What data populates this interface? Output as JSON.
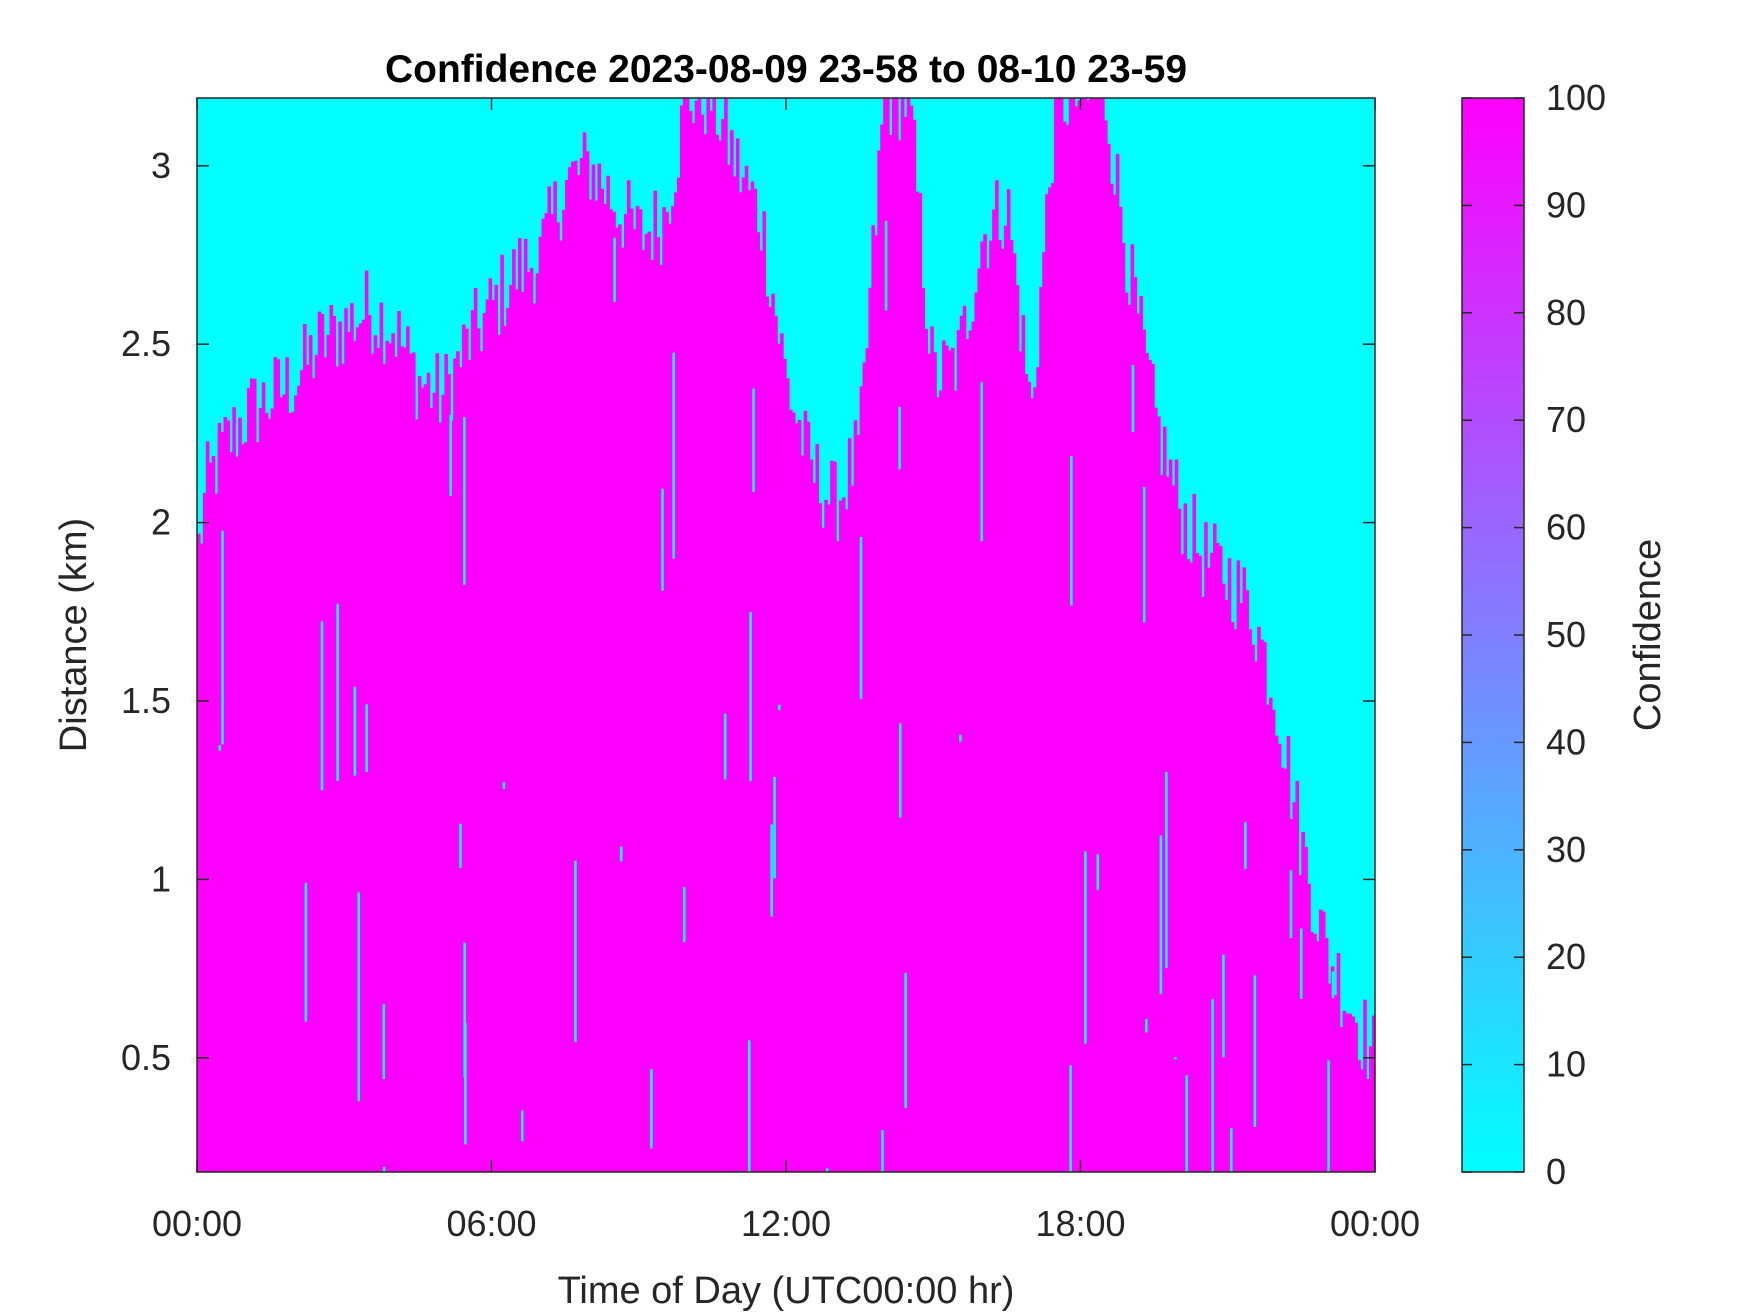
{
  "chart_data": {
    "type": "heatmap",
    "title": "Confidence 2023-08-09 23-58 to 08-10 23-59",
    "xlabel": "Time of Day (UTC00:00 hr)",
    "ylabel": "Distance (km)",
    "colorbar_label": "Confidence",
    "x_unit": "hours",
    "xlim": [
      0,
      24
    ],
    "ylim": [
      0.18,
      3.19
    ],
    "clim": [
      0,
      100
    ],
    "x_ticks": [
      0,
      6,
      12,
      18,
      24
    ],
    "x_tick_labels": [
      "00:00",
      "06:00",
      "12:00",
      "18:00",
      "00:00"
    ],
    "y_ticks": [
      0.5,
      1,
      1.5,
      2,
      2.5,
      3
    ],
    "y_tick_labels": [
      "0.5",
      "1",
      "1.5",
      "2",
      "2.5",
      "3"
    ],
    "colorbar_ticks": [
      0,
      10,
      20,
      30,
      40,
      50,
      60,
      70,
      80,
      90,
      100
    ],
    "colorbar_tick_labels": [
      "0",
      "10",
      "20",
      "30",
      "40",
      "50",
      "60",
      "70",
      "80",
      "90",
      "100"
    ],
    "colormap": {
      "low": "#00FFFF",
      "high": "#FF00FF"
    },
    "low_color": "#00FFFF",
    "high_color": "#FF00FF",
    "high_confidence_top_km": {
      "time_hr": [
        0,
        0.2,
        0.5,
        1,
        1.5,
        2,
        2.5,
        3,
        3.5,
        4,
        4.5,
        5,
        5.5,
        6,
        6.5,
        7,
        7.5,
        8,
        8.5,
        9,
        9.5,
        10,
        10.5,
        11,
        11.5,
        12,
        12.5,
        13,
        13.5,
        14,
        14.5,
        15,
        15.5,
        16,
        16.5,
        17,
        17.5,
        18,
        18.5,
        19,
        19.5,
        20,
        20.5,
        21,
        21.5,
        22,
        22.5,
        23,
        23.5,
        24
      ],
      "value_km": [
        1.9,
        2.1,
        2.2,
        2.3,
        2.35,
        2.4,
        2.5,
        2.55,
        2.6,
        2.55,
        2.4,
        2.35,
        2.5,
        2.6,
        2.7,
        2.75,
        2.95,
        3.0,
        2.9,
        2.8,
        2.85,
        3.19,
        3.19,
        3.0,
        2.85,
        2.4,
        2.15,
        2.05,
        2.2,
        3.19,
        3.19,
        2.4,
        2.45,
        2.8,
        2.9,
        2.3,
        3.19,
        3.19,
        3.19,
        2.7,
        2.3,
        2.05,
        1.9,
        1.85,
        1.75,
        1.5,
        1.1,
        0.8,
        0.65,
        0.5
      ]
    }
  }
}
